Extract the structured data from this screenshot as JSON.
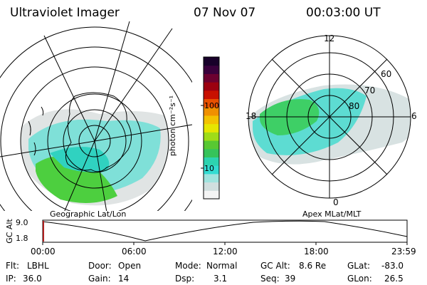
{
  "header": {
    "instrument": "Ultraviolet Imager",
    "date": "07 Nov 07",
    "time": "00:03:00 UT"
  },
  "left_panel": {
    "caption": "Geographic Lat/Lon"
  },
  "right_panel": {
    "caption": "Apex MLat/MLT",
    "mlt_labels": [
      "12",
      "18",
      "6",
      "0"
    ],
    "mlat_labels": [
      "60",
      "70",
      "80"
    ]
  },
  "colorbar": {
    "unit_label": "photon cm⁻²s⁻¹",
    "tick_labels": [
      "100",
      "10"
    ],
    "scale": "log",
    "colors": [
      "#f4f4f4",
      "#d0dede",
      "#9fe3de",
      "#33dcd2",
      "#2dd3b0",
      "#36c35a",
      "#58c832",
      "#9fdc18",
      "#e6e600",
      "#f3c200",
      "#f09000",
      "#e85000",
      "#c81000",
      "#9c0010",
      "#6c0030",
      "#3a003c",
      "#18002a"
    ]
  },
  "altitude_plot": {
    "ylabel": "GC Alt",
    "y_ticks": [
      "9.0",
      "1.8"
    ],
    "y_range": [
      1.8,
      9.0
    ],
    "x_ticks": [
      "00:00",
      "06:00",
      "12:00",
      "18:00",
      "23:59"
    ],
    "current_marker_color": "#b02020"
  },
  "status": {
    "row1": {
      "filter_key": "Flt:",
      "filter_val": "LBHL",
      "door_key": "Door:",
      "door_val": "Open",
      "mode_key": "Mode:",
      "mode_val": "Normal",
      "gcalt_key": "GC Alt:",
      "gcalt_val": "8.6 Re",
      "glat_key": "GLat:",
      "glat_val": "-83.0"
    },
    "row2": {
      "ip_key": "IP:",
      "ip_val": "36.0",
      "gain_key": "Gain:",
      "gain_val": "14",
      "dsp_key": "Dsp:",
      "dsp_val": "3.1",
      "seq_key": "Seq:",
      "seq_val": "39",
      "glon_key": "GLon:",
      "glon_val": "26.5"
    }
  }
}
